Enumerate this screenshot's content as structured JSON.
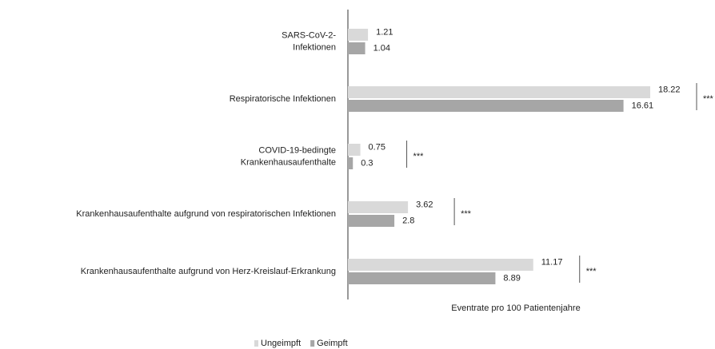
{
  "chart_data": {
    "type": "barh",
    "categories": [
      "SARS-CoV-2-\nInfektionen",
      "Respiratorische Infektionen",
      "COVID-19-bedingte\nKrankenhausaufenthalte",
      "Krankenhausaufenthalte aufgrund von respiratorischen Infektionen",
      "Krankenhausaufenthalte aufgrund von Herz-Kreislauf-Erkrankung"
    ],
    "series": [
      {
        "name": "Ungeimpft",
        "color": "#d9d9d9",
        "values": [
          1.21,
          18.22,
          0.75,
          3.62,
          11.17
        ]
      },
      {
        "name": "Geimpft",
        "color": "#a6a6a6",
        "values": [
          1.04,
          16.61,
          0.3,
          2.8,
          8.89
        ]
      }
    ],
    "significance": [
      null,
      "***",
      "***",
      "***",
      "***"
    ],
    "x_label": "Eventrate pro 100 Patientenjahre",
    "legend": "bottom"
  }
}
